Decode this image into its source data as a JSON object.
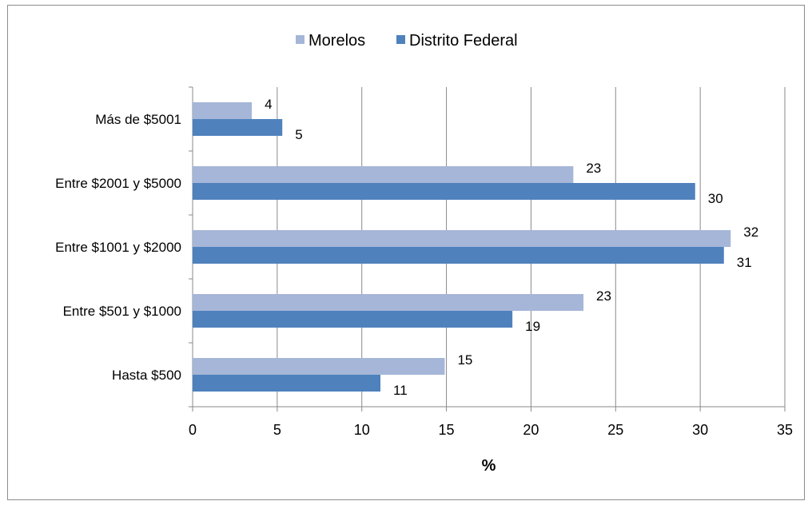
{
  "chart_data": {
    "type": "bar",
    "orientation": "horizontal",
    "categories": [
      "Hasta $500",
      "Entre $501 y $1000",
      "Entre $1001 y $2000",
      "Entre $2001 y $5000",
      "Más de $5001"
    ],
    "series": [
      {
        "name": "Morelos",
        "values": [
          14.9,
          23.1,
          31.8,
          22.5,
          3.5
        ],
        "labels": [
          "15",
          "23",
          "32",
          "23",
          "4"
        ],
        "color": "#a5b6d8"
      },
      {
        "name": "Distrito Federal",
        "values": [
          11.1,
          18.9,
          31.4,
          29.7,
          5.3
        ],
        "labels": [
          "11",
          "19",
          "31",
          "30",
          "5"
        ],
        "color": "#4f81bd"
      }
    ],
    "xlabel": "%",
    "ylabel": "",
    "xlim": [
      0,
      35
    ],
    "xticks": [
      0,
      5,
      10,
      15,
      20,
      25,
      30,
      35
    ],
    "grid": "vertical",
    "legend": "top"
  }
}
